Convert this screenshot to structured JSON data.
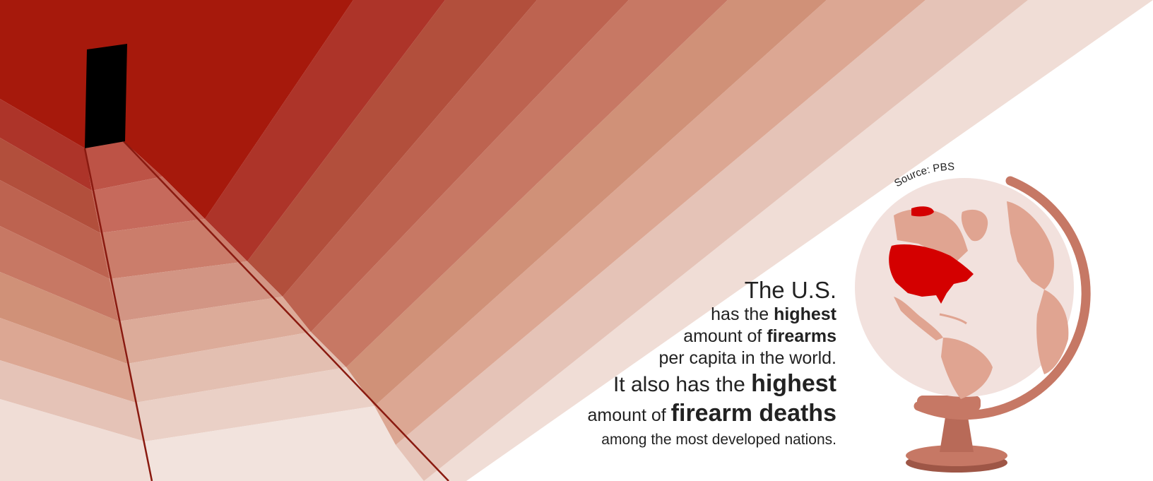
{
  "palette": {
    "background": "#ffffff",
    "bands": [
      "#a6190c",
      "#ad3429",
      "#b24f3c",
      "#bd6350",
      "#c77864",
      "#d09178",
      "#dca793",
      "#e5c3b7",
      "#f0ddd6"
    ],
    "door": "#000000",
    "highlight": "#d40000",
    "globe_sphere": "#f2e1dd",
    "globe_land": "#e0a491",
    "globe_frame": "#c67865",
    "globe_stand": "#b86a58"
  },
  "source_label": "Source: PBS",
  "headline": {
    "line1": "The U.S.",
    "line2_pre": "has the ",
    "line2_bold": "highest",
    "line3_pre": "amount of ",
    "line3_bold": "firearms",
    "line4_a": "per capita",
    "line4_b": " in the world.",
    "line5_pre": "It also has the ",
    "line5_bold": "highest",
    "line6_pre": "amount of ",
    "line6_bold": "firearm deaths",
    "line7": "among the most developed nations."
  },
  "icons": [
    "door-icon",
    "staircase-icon",
    "globe-icon"
  ]
}
